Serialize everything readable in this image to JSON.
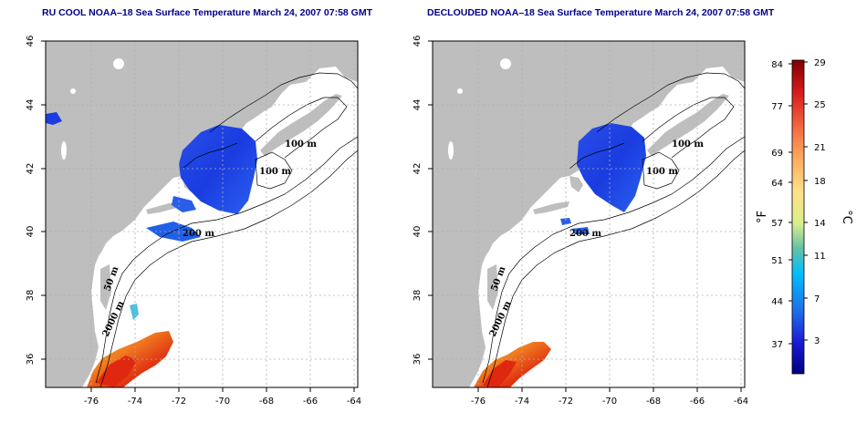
{
  "panels": [
    {
      "id": "left",
      "title": "RU COOL NOAA–18 Sea Surface Temperature March 24, 2007 07:58 GMT",
      "contour_labels": [
        "100 m",
        "100 m",
        "200 m",
        "50 m",
        "2000 m"
      ]
    },
    {
      "id": "right",
      "title": "DECLOUDED NOAA–18 Sea Surface Temperature March 24, 2007 07:58 GMT",
      "contour_labels": [
        "100 m",
        "100 m",
        "200 m",
        "50 m",
        "2000 m"
      ]
    }
  ],
  "axes": {
    "lon_ticks": [
      "-76",
      "-74",
      "-72",
      "-70",
      "-68",
      "-66",
      "-64"
    ],
    "lat_ticks": [
      "46",
      "44",
      "42",
      "40",
      "38",
      "36"
    ]
  },
  "colorbar": {
    "fahrenheit_ticks": [
      "84",
      "77",
      "69",
      "64",
      "57",
      "51",
      "44",
      "37"
    ],
    "celsius_ticks": [
      "29",
      "25",
      "21",
      "18",
      "14",
      "11",
      "7",
      "3"
    ],
    "fahrenheit_unit": "°F",
    "celsius_unit": "°C",
    "colors": [
      "#7f0000",
      "#d7191c",
      "#f46d43",
      "#fdae61",
      "#fee08b",
      "#d9ef8b",
      "#66c2a5",
      "#00bfff",
      "#1e6fe8",
      "#1a1ad6",
      "#00007f"
    ]
  },
  "colors": {
    "land": "#bebebe",
    "ocean": "#ffffff",
    "title": "#00008b",
    "grid": "#b0b0b0"
  }
}
